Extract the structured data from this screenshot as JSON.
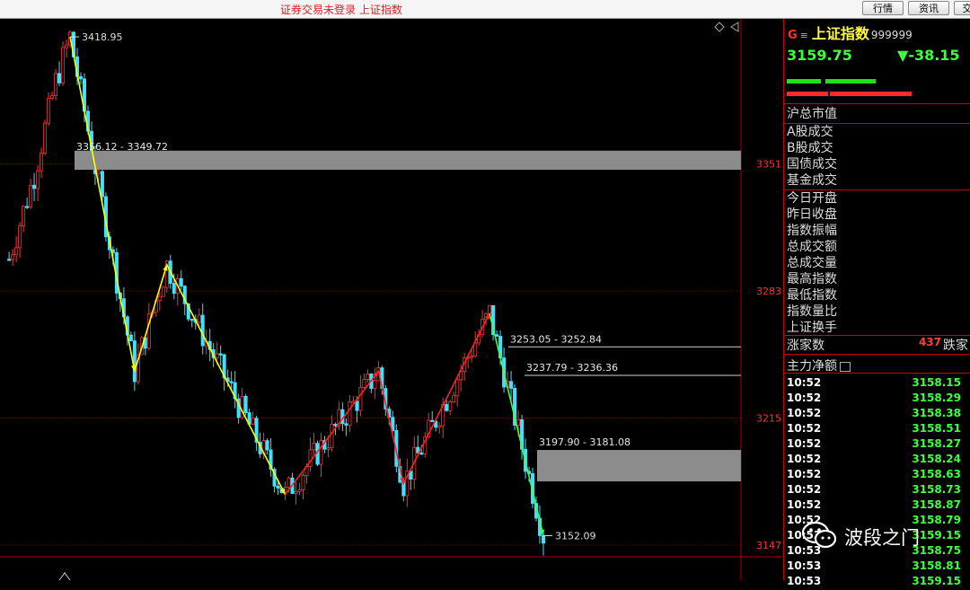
{
  "topbar": {
    "title": "证券交易未登录  上证指数",
    "buttons": [
      "行情",
      "资讯",
      "交"
    ]
  },
  "chart_data": {
    "type": "candlestick",
    "title": "",
    "xlabel": "",
    "ylabel": "",
    "ylim": [
      3140,
      3425
    ],
    "y_ticks": [
      3351,
      3283,
      3215,
      3147
    ],
    "annotations": {
      "high": "3418.95",
      "low": "3152.09"
    },
    "zones": [
      {
        "label": "3356.12 - 3349.72",
        "top": 3356.12,
        "bottom": 3349.72,
        "style": "filled"
      },
      {
        "label": "3253.05 - 3252.84",
        "top": 3253.05,
        "bottom": 3252.84,
        "style": "line"
      },
      {
        "label": "3237.79 - 3236.36",
        "top": 3237.79,
        "bottom": 3236.36,
        "style": "line"
      },
      {
        "label": "3197.90 - 3181.08",
        "top": 3197.9,
        "bottom": 3181.08,
        "style": "filled"
      }
    ],
    "wave_lines": [
      {
        "color": "#ffff00",
        "points": [
          [
            0,
            3418.95
          ],
          [
            18,
            3240
          ],
          [
            27,
            3297
          ],
          [
            60,
            3174
          ]
        ]
      },
      {
        "color": "#ff2020",
        "points": [
          [
            60,
            3174
          ],
          [
            86,
            3240
          ],
          [
            93,
            3180
          ],
          [
            117,
            3271
          ]
        ]
      },
      {
        "color": "#40ff40",
        "points": [
          [
            117,
            3271
          ],
          [
            132,
            3152.09
          ]
        ]
      }
    ],
    "x_count": 132
  },
  "side": {
    "flag": "G",
    "menu": "≡",
    "name": "上证指数",
    "code": "999999",
    "price": "3159.75",
    "change": "▼-38.15",
    "colors": {
      "up": "#ff2020",
      "down": "#40ff40",
      "name": "#ffff40",
      "grid": "#cc0000"
    },
    "total_mv_label": "沪总市值",
    "fields_a": [
      "A股成交",
      "B股成交",
      "国债成交",
      "基金成交"
    ],
    "fields_b": [
      "今日开盘",
      "昨日收盘",
      "指数振幅",
      "总成交额",
      "总成交量",
      "最高指数",
      "最低指数",
      "指数量比",
      "上证换手"
    ],
    "rise_label": "涨家数",
    "fall_count": "437",
    "fall_label": "跌家",
    "net_label": "主力净额",
    "ticks": [
      {
        "time": "10:52",
        "price": "3158.15"
      },
      {
        "time": "10:52",
        "price": "3158.29"
      },
      {
        "time": "10:52",
        "price": "3158.38"
      },
      {
        "time": "10:52",
        "price": "3158.51"
      },
      {
        "time": "10:52",
        "price": "3158.27"
      },
      {
        "time": "10:52",
        "price": "3158.24"
      },
      {
        "time": "10:52",
        "price": "3158.63"
      },
      {
        "time": "10:52",
        "price": "3158.73"
      },
      {
        "time": "10:52",
        "price": "3158.87"
      },
      {
        "time": "10:52",
        "price": "3158.79"
      },
      {
        "time": "10:53",
        "price": "3159.15"
      },
      {
        "time": "10:53",
        "price": "3158.75"
      },
      {
        "time": "10:53",
        "price": "3158.81"
      },
      {
        "time": "10:53",
        "price": "3159.15"
      }
    ]
  },
  "watermark": {
    "text": "波段之门",
    "icon": "wechat-icon"
  }
}
